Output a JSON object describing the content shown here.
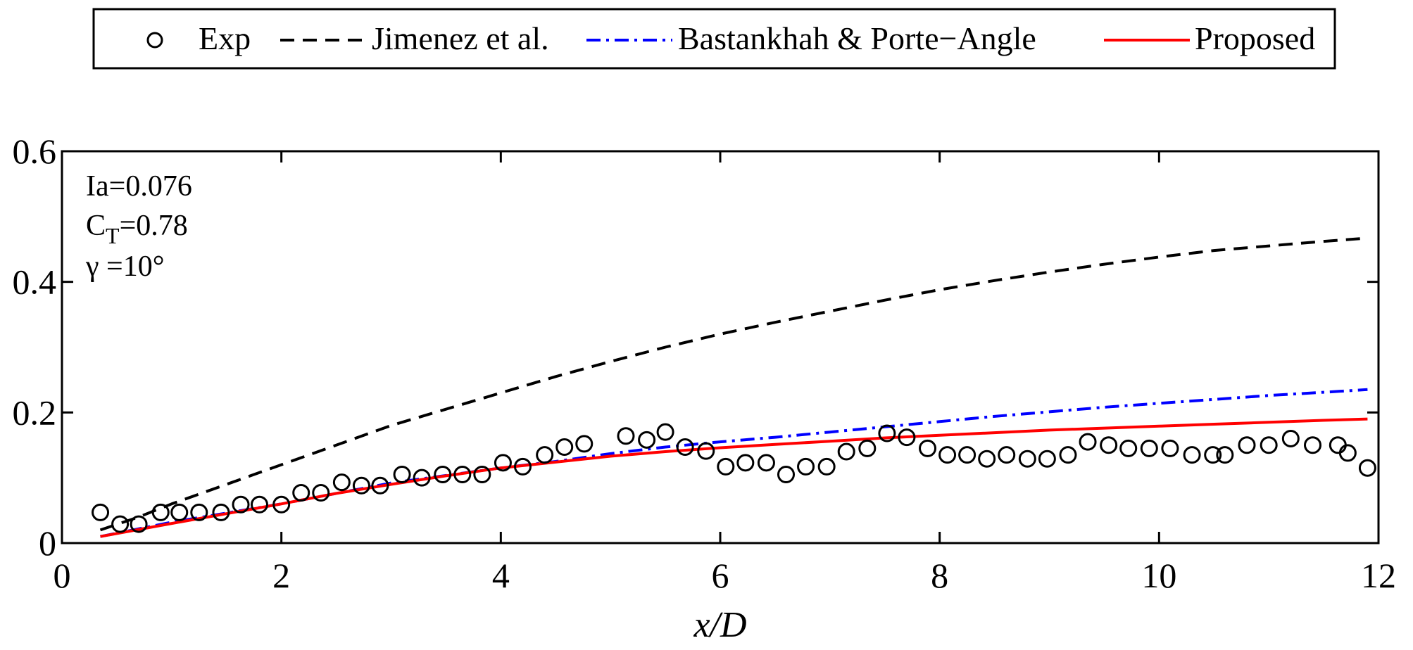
{
  "chart_data": {
    "type": "line",
    "title": "",
    "xlabel": "x/D",
    "ylabel": "",
    "xlim": [
      0,
      12
    ],
    "ylim": [
      0,
      0.6
    ],
    "xticks": [
      0,
      2,
      4,
      6,
      8,
      10,
      12
    ],
    "yticks": [
      0,
      0.2,
      0.4,
      0.6
    ],
    "xtick_labels": [
      "0",
      "2",
      "4",
      "6",
      "8",
      "10",
      "12"
    ],
    "ytick_labels": [
      "0",
      "0.2",
      "0.4",
      "0.6"
    ],
    "grid": false,
    "legend": {
      "placement": "top",
      "entries": [
        "Exp",
        "Jimenez et al.",
        "Bastankhah & Porte−Angle",
        "Proposed"
      ]
    },
    "annotations": {
      "ia_text": "Ia=0.076",
      "ct_prefix": "C",
      "ct_subscript": "T",
      "ct_value": "=0.78",
      "gamma_text": "γ =10°"
    },
    "series": [
      {
        "name": "Exp",
        "style": "marker-circle",
        "color": "#000000",
        "x": [
          0.35,
          0.53,
          0.7,
          0.9,
          1.07,
          1.25,
          1.45,
          1.63,
          1.8,
          2.0,
          2.18,
          2.36,
          2.55,
          2.73,
          2.9,
          3.1,
          3.28,
          3.47,
          3.65,
          3.83,
          4.02,
          4.2,
          4.4,
          4.58,
          4.76,
          5.14,
          5.33,
          5.5,
          5.68,
          5.87,
          6.05,
          6.23,
          6.42,
          6.6,
          6.78,
          6.97,
          7.15,
          7.34,
          7.52,
          7.7,
          7.89,
          8.07,
          8.25,
          8.43,
          8.61,
          8.8,
          8.98,
          9.17,
          9.35,
          9.54,
          9.72,
          9.91,
          10.1,
          10.3,
          10.49,
          10.6,
          10.8,
          11.0,
          11.2,
          11.4,
          11.63,
          11.72,
          11.9
        ],
        "y": [
          0.047,
          0.029,
          0.029,
          0.047,
          0.047,
          0.047,
          0.047,
          0.059,
          0.059,
          0.059,
          0.077,
          0.077,
          0.093,
          0.088,
          0.088,
          0.105,
          0.1,
          0.105,
          0.105,
          0.105,
          0.123,
          0.117,
          0.135,
          0.147,
          0.152,
          0.164,
          0.158,
          0.17,
          0.147,
          0.141,
          0.117,
          0.123,
          0.123,
          0.105,
          0.117,
          0.117,
          0.14,
          0.145,
          0.168,
          0.162,
          0.145,
          0.135,
          0.135,
          0.129,
          0.135,
          0.129,
          0.129,
          0.135,
          0.155,
          0.15,
          0.145,
          0.145,
          0.145,
          0.135,
          0.135,
          0.135,
          0.15,
          0.15,
          0.16,
          0.15,
          0.15,
          0.138,
          0.115
        ]
      },
      {
        "name": "Jimenez et al.",
        "style": "dashed",
        "color": "#000000",
        "x": [
          0.35,
          0.7,
          1.0,
          1.5,
          2.0,
          2.5,
          3.0,
          3.5,
          4.0,
          4.5,
          5.0,
          5.5,
          6.0,
          6.5,
          7.0,
          7.5,
          8.0,
          8.5,
          9.0,
          9.5,
          10.0,
          10.5,
          11.0,
          11.5,
          11.9
        ],
        "y": [
          0.02,
          0.04,
          0.06,
          0.09,
          0.12,
          0.15,
          0.18,
          0.205,
          0.23,
          0.255,
          0.278,
          0.3,
          0.32,
          0.338,
          0.355,
          0.372,
          0.388,
          0.402,
          0.415,
          0.427,
          0.438,
          0.448,
          0.455,
          0.462,
          0.467
        ]
      },
      {
        "name": "Bastankhah & Porte−Angle",
        "style": "dash-dot",
        "color": "#0000ff",
        "x": [
          0.35,
          1.0,
          2.0,
          3.0,
          4.0,
          4.5,
          5.0,
          5.5,
          6.0,
          6.5,
          7.0,
          7.5,
          8.0,
          8.5,
          9.0,
          9.5,
          10.0,
          10.5,
          11.0,
          11.5,
          11.9
        ],
        "y": [
          0.01,
          0.032,
          0.06,
          0.092,
          0.115,
          0.125,
          0.137,
          0.147,
          0.155,
          0.162,
          0.17,
          0.178,
          0.186,
          0.194,
          0.201,
          0.208,
          0.214,
          0.22,
          0.226,
          0.231,
          0.235
        ]
      },
      {
        "name": "Proposed",
        "style": "solid",
        "color": "#ff0000",
        "x": [
          0.35,
          1.0,
          1.5,
          2.0,
          2.5,
          3.0,
          3.5,
          4.0,
          4.5,
          5.0,
          5.5,
          6.0,
          6.5,
          7.0,
          7.5,
          8.0,
          8.5,
          9.0,
          9.5,
          10.0,
          10.5,
          11.0,
          11.5,
          11.9
        ],
        "y": [
          0.01,
          0.03,
          0.045,
          0.06,
          0.076,
          0.09,
          0.103,
          0.115,
          0.124,
          0.133,
          0.14,
          0.146,
          0.151,
          0.156,
          0.161,
          0.165,
          0.169,
          0.173,
          0.176,
          0.179,
          0.182,
          0.185,
          0.188,
          0.19
        ]
      }
    ]
  }
}
